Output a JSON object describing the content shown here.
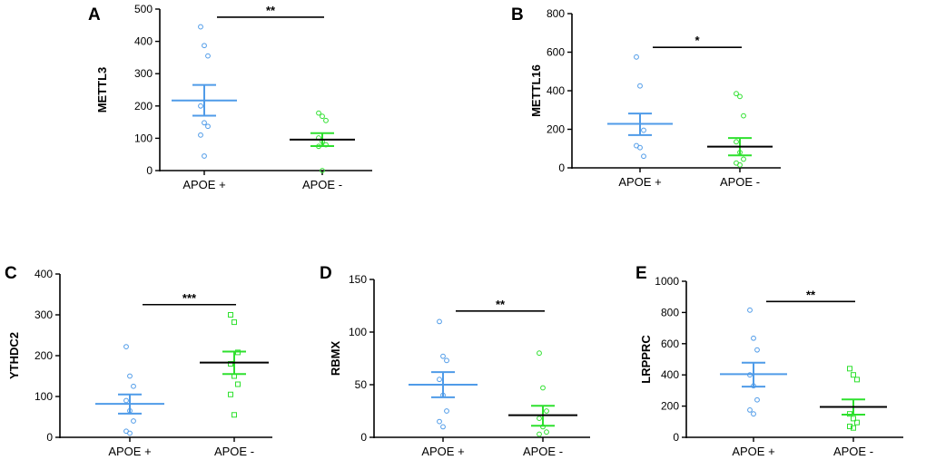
{
  "chart_data": [
    {
      "type": "scatter",
      "panel": "A",
      "ylabel": "METTL3",
      "ylim": [
        0,
        500
      ],
      "yticks": [
        0,
        100,
        200,
        300,
        400,
        500
      ],
      "categories": [
        "APOE +",
        "APOE -"
      ],
      "series": [
        {
          "name": "APOE +",
          "color": "#4f9be8",
          "marker": "circle",
          "mean": 217,
          "sem_low": 170,
          "sem_high": 265,
          "values": [
            445,
            387,
            355,
            200,
            148,
            137,
            110,
            45
          ]
        },
        {
          "name": "APOE -",
          "color": "#2ee02e",
          "marker": "circle",
          "mean": 96,
          "sem_low": 76,
          "sem_high": 116,
          "values": [
            178,
            168,
            155,
            101,
            90,
            80,
            75,
            0
          ]
        }
      ],
      "significance": {
        "label": "**",
        "y": 475
      }
    },
    {
      "type": "scatter",
      "panel": "B",
      "ylabel": "METTL16",
      "ylim": [
        0,
        800
      ],
      "yticks": [
        0,
        200,
        400,
        600,
        800
      ],
      "categories": [
        "APOE +",
        "APOE -"
      ],
      "series": [
        {
          "name": "APOE +",
          "color": "#4f9be8",
          "marker": "circle",
          "mean": 228,
          "sem_low": 170,
          "sem_high": 282,
          "values": [
            575,
            425,
            195,
            115,
            105,
            60
          ]
        },
        {
          "name": "APOE -",
          "color": "#2ee02e",
          "marker": "circle",
          "mean": 110,
          "sem_low": 65,
          "sem_high": 155,
          "values": [
            385,
            370,
            270,
            135,
            80,
            45,
            25,
            15
          ]
        }
      ],
      "significance": {
        "label": "*",
        "y": 625
      }
    },
    {
      "type": "scatter",
      "panel": "C",
      "ylabel": "YTHDC2",
      "ylim": [
        0,
        400
      ],
      "yticks": [
        0,
        100,
        200,
        300,
        400
      ],
      "categories": [
        "APOE +",
        "APOE -"
      ],
      "series": [
        {
          "name": "APOE +",
          "color": "#4f9be8",
          "marker": "circle",
          "mean": 82,
          "sem_low": 58,
          "sem_high": 105,
          "values": [
            222,
            150,
            125,
            90,
            65,
            40,
            15,
            10
          ]
        },
        {
          "name": "APOE -",
          "color": "#2ee02e",
          "marker": "square",
          "mean": 183,
          "sem_low": 155,
          "sem_high": 210,
          "values": [
            300,
            282,
            208,
            180,
            150,
            130,
            105,
            55
          ]
        }
      ],
      "significance": {
        "label": "***",
        "y": 325
      }
    },
    {
      "type": "scatter",
      "panel": "D",
      "ylabel": "RBMX",
      "ylim": [
        0,
        150
      ],
      "yticks": [
        0,
        50,
        100,
        150
      ],
      "categories": [
        "APOE +",
        "APOE -"
      ],
      "series": [
        {
          "name": "APOE +",
          "color": "#4f9be8",
          "marker": "circle",
          "mean": 50,
          "sem_low": 38,
          "sem_high": 62,
          "values": [
            110,
            77,
            73,
            55,
            40,
            25,
            15,
            10
          ]
        },
        {
          "name": "APOE -",
          "color": "#2ee02e",
          "marker": "circle",
          "mean": 21,
          "sem_low": 11,
          "sem_high": 30,
          "values": [
            80,
            47,
            25,
            18,
            10,
            5,
            3
          ]
        }
      ],
      "significance": {
        "label": "**",
        "y": 120
      }
    },
    {
      "type": "scatter",
      "panel": "E",
      "ylabel": "LRPPRC",
      "ylim": [
        0,
        1000
      ],
      "yticks": [
        0,
        200,
        400,
        600,
        800,
        1000
      ],
      "categories": [
        "APOE +",
        "APOE -"
      ],
      "series": [
        {
          "name": "APOE +",
          "color": "#4f9be8",
          "marker": "circle",
          "mean": 405,
          "sem_low": 325,
          "sem_high": 478,
          "values": [
            815,
            635,
            560,
            400,
            330,
            240,
            175,
            150
          ]
        },
        {
          "name": "APOE -",
          "color": "#2ee02e",
          "marker": "square",
          "mean": 195,
          "sem_low": 145,
          "sem_high": 243,
          "values": [
            440,
            400,
            370,
            150,
            120,
            95,
            70,
            60
          ]
        }
      ],
      "significance": {
        "label": "**",
        "y": 870
      }
    }
  ]
}
